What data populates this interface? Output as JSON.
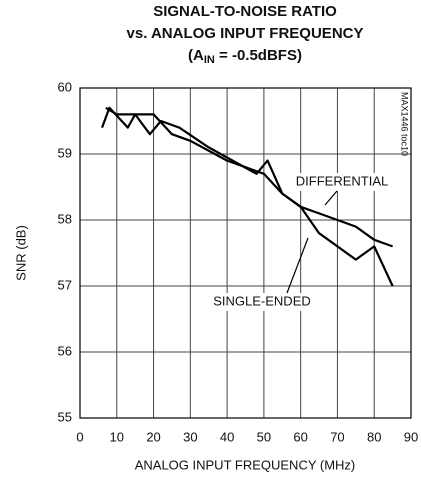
{
  "chart_data": {
    "type": "line",
    "title": [
      "SIGNAL-TO-NOISE RATIO",
      "vs. ANALOG INPUT FREQUENCY"
    ],
    "condition": {
      "prefix": "(A",
      "sub": "IN",
      "suffix": " = -0.5dBFS)"
    },
    "watermark": "MAX1446 toc10",
    "x_label": "ANALOG INPUT FREQUENCY (MHz)",
    "y_label": "SNR (dB)",
    "xlim": [
      0,
      90
    ],
    "xticks": [
      0,
      10,
      20,
      30,
      40,
      50,
      60,
      70,
      80,
      90
    ],
    "ylim": [
      55,
      60
    ],
    "yticks": [
      55,
      56,
      57,
      58,
      59,
      60
    ],
    "grid": true,
    "series": [
      {
        "name": "DIFFERENTIAL",
        "color": "#000000",
        "x": [
          7,
          10,
          13,
          15,
          20,
          25,
          30,
          40,
          45,
          50,
          55,
          60,
          65,
          70,
          75,
          80,
          85
        ],
        "values": [
          59.7,
          59.6,
          59.6,
          59.6,
          59.6,
          59.3,
          59.2,
          58.9,
          58.8,
          58.7,
          58.4,
          58.2,
          58.1,
          58.0,
          57.9,
          57.7,
          57.6
        ]
      },
      {
        "name": "SINGLE-ENDED",
        "color": "#000000",
        "x": [
          6,
          8,
          13,
          15,
          19,
          22,
          27,
          35,
          48,
          51,
          55,
          60,
          65,
          70,
          75,
          80,
          85
        ],
        "values": [
          59.4,
          59.7,
          59.4,
          59.6,
          59.3,
          59.5,
          59.4,
          59.1,
          58.7,
          58.9,
          58.4,
          58.2,
          57.8,
          57.6,
          57.4,
          57.6,
          57.0
        ]
      }
    ]
  }
}
